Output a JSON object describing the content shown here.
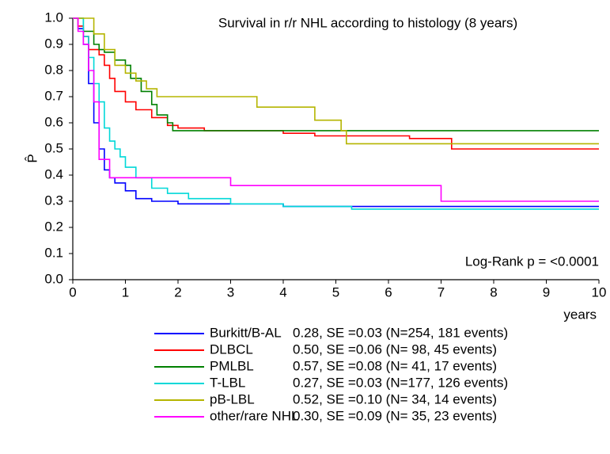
{
  "chart_data": {
    "type": "line",
    "step": true,
    "title": "Survival in r/r NHL according to histology (8 years)",
    "y_label": "P̂",
    "x_label": "years",
    "annotation": "Log-Rank p = <0.0001",
    "xlim": [
      0,
      10
    ],
    "ylim": [
      0,
      1
    ],
    "xticks": [
      0,
      1,
      2,
      3,
      4,
      5,
      6,
      7,
      8,
      9,
      10
    ],
    "yticks": [
      {
        "value": 0,
        "label": "0.0"
      },
      0.1,
      0.2,
      0.3,
      0.4,
      0.5,
      0.6,
      0.7,
      0.8,
      0.9,
      {
        "value": 1,
        "label": "1.0"
      }
    ],
    "series": [
      {
        "name": "Burkitt/B-AL",
        "color": "#0000ff",
        "stats": "0.28, SE =0.03 (N=254, 181 events)",
        "x": [
          0,
          0.1,
          0.2,
          0.3,
          0.4,
          0.5,
          0.6,
          0.7,
          0.8,
          1.0,
          1.2,
          1.5,
          2.0,
          4.0,
          10
        ],
        "values": [
          1.0,
          0.96,
          0.9,
          0.75,
          0.6,
          0.5,
          0.42,
          0.39,
          0.37,
          0.34,
          0.31,
          0.3,
          0.29,
          0.28,
          0.28
        ]
      },
      {
        "name": "DLBCL",
        "color": "#ff0000",
        "stats": "0.50, SE =0.06 (N= 98, 45 events)",
        "x": [
          0,
          0.1,
          0.2,
          0.3,
          0.5,
          0.6,
          0.7,
          0.8,
          1.0,
          1.2,
          1.5,
          1.8,
          2.0,
          2.5,
          4.0,
          4.6,
          6.4,
          7.2,
          10
        ],
        "values": [
          1.0,
          0.97,
          0.93,
          0.88,
          0.86,
          0.82,
          0.77,
          0.72,
          0.68,
          0.65,
          0.62,
          0.59,
          0.58,
          0.57,
          0.56,
          0.55,
          0.54,
          0.5,
          0.5
        ]
      },
      {
        "name": "PMLBL",
        "color": "#008000",
        "stats": "0.57, SE =0.08 (N= 41, 17 events)",
        "x": [
          0,
          0.2,
          0.4,
          0.5,
          0.6,
          0.8,
          1.0,
          1.1,
          1.3,
          1.5,
          1.6,
          1.8,
          1.9,
          10
        ],
        "values": [
          1.0,
          0.95,
          0.9,
          0.88,
          0.87,
          0.84,
          0.82,
          0.77,
          0.72,
          0.67,
          0.63,
          0.6,
          0.57,
          0.57
        ]
      },
      {
        "name": "T-LBL",
        "color": "#00d8d8",
        "stats": "0.27, SE =0.03 (N=177, 126 events)",
        "x": [
          0,
          0.2,
          0.3,
          0.4,
          0.5,
          0.6,
          0.7,
          0.8,
          0.9,
          1.0,
          1.2,
          1.5,
          1.8,
          2.2,
          3.0,
          4.0,
          5.3,
          10
        ],
        "values": [
          1.0,
          0.93,
          0.85,
          0.75,
          0.68,
          0.58,
          0.53,
          0.5,
          0.47,
          0.43,
          0.39,
          0.35,
          0.33,
          0.31,
          0.29,
          0.28,
          0.27,
          0.27
        ]
      },
      {
        "name": "pB-LBL",
        "color": "#b5b500",
        "stats": "0.52, SE =0.10 (N= 34, 14 events)",
        "x": [
          0,
          0.4,
          0.6,
          0.8,
          1.0,
          1.2,
          1.4,
          1.6,
          3.5,
          4.6,
          5.1,
          5.2,
          10
        ],
        "values": [
          1.0,
          0.94,
          0.88,
          0.82,
          0.79,
          0.76,
          0.73,
          0.7,
          0.66,
          0.61,
          0.57,
          0.52,
          0.52
        ]
      },
      {
        "name": "other/rare NHL",
        "color": "#ff00ff",
        "stats": "0.30, SE =0.09 (N= 35, 23 events)",
        "x": [
          0,
          0.1,
          0.2,
          0.3,
          0.4,
          0.5,
          0.7,
          3.0,
          7.0,
          10
        ],
        "values": [
          1.0,
          0.95,
          0.9,
          0.8,
          0.68,
          0.46,
          0.39,
          0.36,
          0.3,
          0.3
        ]
      }
    ]
  }
}
